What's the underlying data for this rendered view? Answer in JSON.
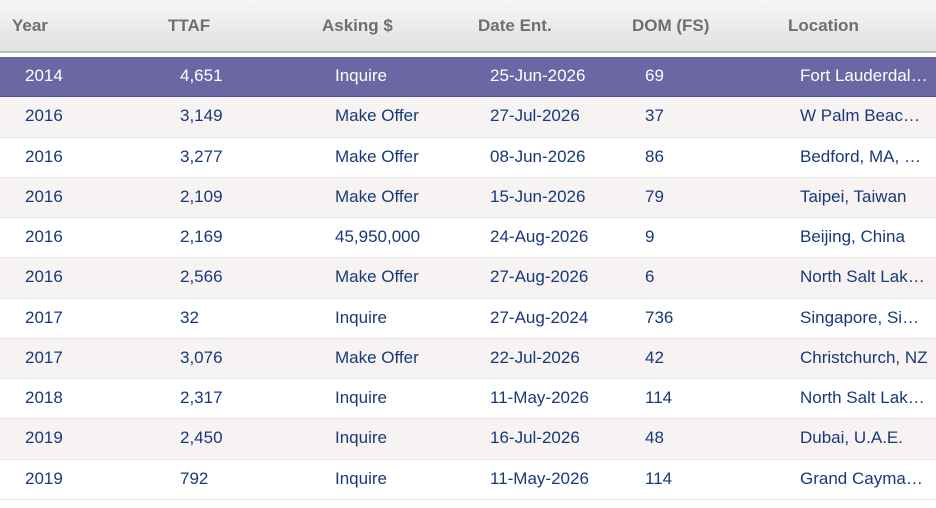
{
  "columns": [
    {
      "label": "Year"
    },
    {
      "label": "TTAF"
    },
    {
      "label": "Asking $"
    },
    {
      "label": "Date Ent."
    },
    {
      "label": "DOM (FS)"
    },
    {
      "label": "Location"
    }
  ],
  "rows": [
    {
      "year": "2014",
      "ttaf": "4,651",
      "asking": "Inquire",
      "date": "25-Jun-2026",
      "dom": "69",
      "location": "Fort Lauderdale, FL",
      "selected": true
    },
    {
      "year": "2016",
      "ttaf": "3,149",
      "asking": "Make Offer",
      "date": "27-Jul-2026",
      "dom": "37",
      "location": "W Palm Beach, FL"
    },
    {
      "year": "2016",
      "ttaf": "3,277",
      "asking": "Make Offer",
      "date": "08-Jun-2026",
      "dom": "86",
      "location": "Bedford, MA, USA"
    },
    {
      "year": "2016",
      "ttaf": "2,109",
      "asking": "Make Offer",
      "date": "15-Jun-2026",
      "dom": "79",
      "location": "Taipei, Taiwan"
    },
    {
      "year": "2016",
      "ttaf": "2,169",
      "asking": "45,950,000",
      "date": "24-Aug-2026",
      "dom": "9",
      "location": "Beijing, China"
    },
    {
      "year": "2016",
      "ttaf": "2,566",
      "asking": "Make Offer",
      "date": "27-Aug-2026",
      "dom": "6",
      "location": "North Salt Lake, UT"
    },
    {
      "year": "2017",
      "ttaf": "32",
      "asking": "Inquire",
      "date": "27-Aug-2024",
      "dom": "736",
      "location": "Singapore, Singapore"
    },
    {
      "year": "2017",
      "ttaf": "3,076",
      "asking": "Make Offer",
      "date": "22-Jul-2026",
      "dom": "42",
      "location": "Christchurch, NZ"
    },
    {
      "year": "2018",
      "ttaf": "2,317",
      "asking": "Inquire",
      "date": "11-May-2026",
      "dom": "114",
      "location": "North Salt Lake, UT"
    },
    {
      "year": "2019",
      "ttaf": "2,450",
      "asking": "Inquire",
      "date": "16-Jul-2026",
      "dom": "48",
      "location": "Dubai, U.A.E."
    },
    {
      "year": "2019",
      "ttaf": "792",
      "asking": "Inquire",
      "date": "11-May-2026",
      "dom": "114",
      "location": "Grand Cayman, KY"
    }
  ]
}
